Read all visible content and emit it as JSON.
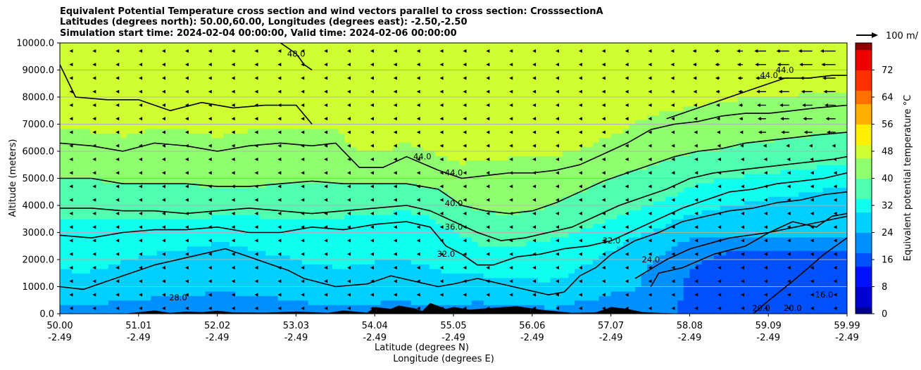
{
  "title": {
    "line1": "Equivalent Potential Temperature cross section and wind vectors parallel to cross section: CrosssectionA",
    "line2": "Latitudes (degrees north): 50.00,60.00, Longitudes (degrees east): -2.50,-2.50",
    "line3": "Simulation start time: 2024-02-04 00:00:00, Valid time: 2024-02-06 00:00:00"
  },
  "chart_data": {
    "type": "contour",
    "x_ticks": [
      {
        "lat": "50.00",
        "lon": "-2.49"
      },
      {
        "lat": "51.01",
        "lon": "-2.49"
      },
      {
        "lat": "52.02",
        "lon": "-2.49"
      },
      {
        "lat": "53.03",
        "lon": "-2.49"
      },
      {
        "lat": "54.04",
        "lon": "-2.49"
      },
      {
        "lat": "55.05",
        "lon": "-2.49"
      },
      {
        "lat": "56.06",
        "lon": "-2.49"
      },
      {
        "lat": "57.07",
        "lon": "-2.49"
      },
      {
        "lat": "58.08",
        "lon": "-2.49"
      },
      {
        "lat": "59.09",
        "lon": "-2.49"
      },
      {
        "lat": "59.99",
        "lon": "-2.49"
      }
    ],
    "xlim": [
      50.0,
      59.99
    ],
    "y_ticks": [
      "0.0",
      "1000.0",
      "2000.0",
      "3000.0",
      "4000.0",
      "5000.0",
      "6000.0",
      "7000.0",
      "8000.0",
      "9000.0",
      "10000.0"
    ],
    "ylim": [
      0,
      10000
    ],
    "ylabel": "Altitude (meters)",
    "xlabel_lat": "Latitude (degrees N)",
    "xlabel_lon": "Longitude (degrees E)",
    "grid": "horizontal",
    "colorbar": {
      "label": "Equivalent potential temperature °C",
      "ticks": [
        "0",
        "8",
        "16",
        "24",
        "32",
        "40",
        "48",
        "56",
        "64",
        "72"
      ],
      "range": [
        0,
        80
      ]
    },
    "quiver_key": {
      "label": "100 m/"
    },
    "contour_lines": [
      {
        "level": 16.0,
        "x": [
          58.8,
          59.0,
          59.3,
          59.5,
          59.7,
          59.99
        ],
        "y": [
          0,
          500,
          1200,
          1700,
          2200,
          2800
        ]
      },
      {
        "level": 20.0,
        "x": [
          57.5,
          57.6,
          57.9,
          58.3,
          58.7,
          59.0,
          59.3,
          59.6,
          59.8,
          59.99
        ],
        "y": [
          1000,
          1500,
          1700,
          2200,
          2500,
          3000,
          3400,
          3200,
          3600,
          3700
        ]
      },
      {
        "level": 24.0,
        "x": [
          57.3,
          57.7,
          58.0,
          58.5,
          59.0,
          59.5,
          59.99
        ],
        "y": [
          1300,
          2000,
          2400,
          2800,
          3000,
          3300,
          3600
        ]
      },
      {
        "level": 28.0,
        "x": [
          50.0,
          50.3,
          50.6,
          50.9,
          51.2,
          51.5,
          51.8,
          52.1,
          52.3,
          52.6,
          52.9,
          53.1,
          53.5,
          53.9,
          54.2,
          54.5,
          54.8,
          55.0,
          55.3,
          55.6,
          55.9,
          56.2,
          56.4,
          56.6,
          56.8,
          57.0,
          57.3,
          57.6,
          57.9,
          58.2,
          58.5,
          58.8,
          59.1,
          59.4,
          59.7,
          59.99
        ],
        "y": [
          1000,
          900,
          1200,
          1500,
          1800,
          2000,
          2200,
          2400,
          2200,
          1900,
          1600,
          1300,
          1000,
          1100,
          1400,
          1200,
          1000,
          1100,
          1300,
          1100,
          900,
          700,
          800,
          1400,
          1700,
          2200,
          2700,
          3000,
          3400,
          3600,
          3800,
          3900,
          4100,
          4200,
          4400,
          4500
        ]
      },
      {
        "level": 32.0,
        "x": [
          50.0,
          50.4,
          50.8,
          51.2,
          51.6,
          52.0,
          52.4,
          52.8,
          53.2,
          53.6,
          54.0,
          54.4,
          54.7,
          54.9,
          55.1,
          55.3,
          55.5,
          55.8,
          56.1,
          56.4,
          56.7,
          57.0,
          57.3,
          57.6,
          57.9,
          58.2,
          58.5,
          58.8,
          59.1,
          59.4,
          59.7,
          59.99
        ],
        "y": [
          2900,
          2800,
          3000,
          3100,
          3100,
          3200,
          3000,
          3000,
          3200,
          3100,
          3300,
          3400,
          3200,
          2500,
          2200,
          1800,
          1800,
          2100,
          2200,
          2400,
          2500,
          2700,
          3100,
          3500,
          3900,
          4200,
          4500,
          4600,
          4800,
          4900,
          5000,
          5200
        ]
      },
      {
        "level": 36.0,
        "x": [
          50.0,
          50.4,
          50.8,
          51.2,
          51.6,
          52.0,
          52.4,
          52.8,
          53.2,
          53.6,
          54.0,
          54.4,
          54.7,
          55.0,
          55.3,
          55.6,
          55.9,
          56.2,
          56.5,
          56.8,
          57.1,
          57.4,
          57.7,
          58.0,
          58.3,
          58.6,
          58.9,
          59.2,
          59.5,
          59.8,
          59.99
        ],
        "y": [
          3900,
          3900,
          3800,
          3800,
          3700,
          3800,
          3900,
          3800,
          3700,
          3800,
          3900,
          4000,
          3800,
          3400,
          3000,
          2700,
          2800,
          3000,
          3200,
          3600,
          4000,
          4300,
          4600,
          5000,
          5200,
          5300,
          5400,
          5500,
          5600,
          5700,
          5800
        ]
      },
      {
        "level": 40.0,
        "x": [
          50.0,
          50.4,
          50.8,
          51.2,
          51.6,
          52.0,
          52.4,
          52.8,
          53.2,
          53.6,
          54.0,
          54.4,
          54.8,
          55.1,
          55.4,
          55.7,
          56.0,
          56.3,
          56.6,
          56.9,
          57.2,
          57.5,
          57.8,
          58.1,
          58.4,
          58.7,
          59.0,
          59.3,
          59.6,
          59.99
        ],
        "y": [
          5000,
          5000,
          4800,
          4800,
          4800,
          4700,
          4700,
          4800,
          4900,
          4800,
          4800,
          4800,
          4600,
          4000,
          3800,
          3700,
          3800,
          4100,
          4500,
          4900,
          5200,
          5500,
          5800,
          6000,
          6100,
          6300,
          6400,
          6500,
          6600,
          6700
        ]
      },
      {
        "level": 44.0,
        "x": [
          50.0,
          50.4,
          50.8,
          51.2,
          51.6,
          52.0,
          52.4,
          52.8,
          53.2,
          53.5,
          53.8,
          54.1,
          54.4,
          54.8,
          55.1,
          55.4,
          55.7,
          56.0,
          56.3,
          56.6,
          56.9,
          57.2,
          57.5,
          57.8,
          58.1,
          58.4,
          58.7,
          59.0,
          59.3,
          59.6,
          59.99
        ],
        "y": [
          6300,
          6200,
          6000,
          6300,
          6200,
          6000,
          6200,
          6300,
          6200,
          6300,
          5400,
          5400,
          5800,
          5300,
          5000,
          5100,
          5200,
          5200,
          5300,
          5500,
          5900,
          6300,
          6800,
          7000,
          7100,
          7300,
          7400,
          7400,
          7500,
          7600,
          7700
        ]
      },
      {
        "level": 44.0,
        "x": [
          57.7,
          58.0,
          58.3,
          58.6,
          58.9,
          59.2,
          59.5,
          59.8,
          59.99
        ],
        "y": [
          7200,
          7500,
          7800,
          8100,
          8400,
          8700,
          8700,
          8800,
          8800
        ]
      },
      {
        "level": 48.0,
        "x": [
          50.0,
          50.2,
          50.6,
          51.0,
          51.4,
          51.8,
          52.2,
          52.6,
          53.0,
          53.2
        ],
        "y": [
          9200,
          8000,
          7900,
          7900,
          7500,
          7800,
          7600,
          7700,
          7700,
          7000
        ]
      },
      {
        "level": 48.0,
        "x": [
          52.8,
          53.0,
          53.1,
          53.2
        ],
        "y": [
          10000,
          9600,
          9200,
          9000
        ]
      }
    ],
    "contour_labels": [
      {
        "text": "48.0",
        "lat": 53.0,
        "alt": 9500
      },
      {
        "text": "44.0",
        "lat": 54.6,
        "alt": 5700
      },
      {
        "text": "44.0",
        "lat": 55.0,
        "alt": 5100
      },
      {
        "text": "40.0",
        "lat": 55.0,
        "alt": 3970
      },
      {
        "text": "36.0",
        "lat": 55.0,
        "alt": 3100
      },
      {
        "text": "32.0",
        "lat": 54.9,
        "alt": 2100
      },
      {
        "text": "32.0",
        "lat": 57.0,
        "alt": 2600
      },
      {
        "text": "24.0",
        "lat": 57.5,
        "alt": 1900
      },
      {
        "text": "28.0",
        "lat": 51.5,
        "alt": 500
      },
      {
        "text": "20.0",
        "lat": 58.9,
        "alt": 100
      },
      {
        "text": "20.0",
        "lat": 59.3,
        "alt": 100
      },
      {
        "text": "16.0",
        "lat": 59.7,
        "alt": 600
      },
      {
        "text": "44.0",
        "lat": 59.0,
        "alt": 8700
      },
      {
        "text": "44.0",
        "lat": 59.2,
        "alt": 8900
      }
    ]
  },
  "colors": {
    "colormap": [
      "#00008f",
      "#0000cf",
      "#0010ff",
      "#0050ff",
      "#008fff",
      "#00cfff",
      "#10ffef",
      "#50ffaf",
      "#8fff70",
      "#cfff30",
      "#ffef00",
      "#ffaf00",
      "#ff7000",
      "#ff3000",
      "#ef0000",
      "#8f0000"
    ],
    "terrain": "#000000",
    "grid": "#b0b0b0"
  }
}
